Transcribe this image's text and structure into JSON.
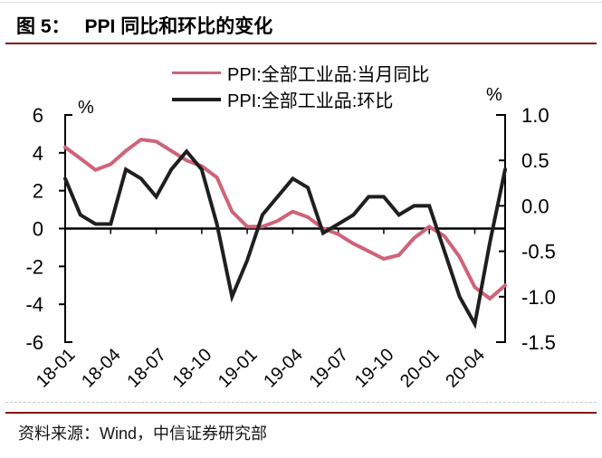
{
  "figure": {
    "title_prefix": "图 5：",
    "title": "PPI 同比和环比的变化",
    "source": "资料来源：Wind，中信证券研究部",
    "accent_color": "#83190e"
  },
  "chart_data": {
    "type": "line",
    "x": [
      "2018-01",
      "2018-02",
      "2018-03",
      "2018-04",
      "2018-05",
      "2018-06",
      "2018-07",
      "2018-08",
      "2018-09",
      "2018-10",
      "2018-11",
      "2018-12",
      "2019-01",
      "2019-02",
      "2019-03",
      "2019-04",
      "2019-05",
      "2019-06",
      "2019-07",
      "2019-08",
      "2019-09",
      "2019-10",
      "2019-11",
      "2019-12",
      "2020-01",
      "2020-02",
      "2020-03",
      "2020-04",
      "2020-05",
      "2020-06"
    ],
    "x_tick_labels": [
      "18-01",
      "18-04",
      "18-07",
      "18-10",
      "19-01",
      "19-04",
      "19-07",
      "19-10",
      "20-01",
      "20-04"
    ],
    "x_tick_every": 3,
    "left_axis": {
      "unit": "%",
      "min": -6,
      "max": 6,
      "tick_values": [
        6,
        4,
        2,
        0,
        -2,
        -4,
        -6
      ],
      "tick_labels": [
        "6",
        "4",
        "2",
        "0",
        "-2",
        "-4",
        "-6"
      ]
    },
    "right_axis": {
      "unit": "%",
      "min": -1.5,
      "max": 1.0,
      "tick_values": [
        1.0,
        0.5,
        0.0,
        -0.5,
        -1.0,
        -1.5
      ],
      "tick_labels": [
        "1.0",
        "0.5",
        "0.0",
        "-0.5",
        "-1.0",
        "-1.5"
      ]
    },
    "legend_position": "top",
    "grid": "off",
    "series": [
      {
        "name": "PPI:全部工业品:当月同比",
        "axis": "left",
        "color": "#cf6378",
        "values": [
          4.3,
          3.7,
          3.1,
          3.4,
          4.1,
          4.7,
          4.6,
          4.1,
          3.6,
          3.3,
          2.7,
          0.9,
          0.1,
          0.1,
          0.4,
          0.9,
          0.6,
          0.0,
          -0.3,
          -0.8,
          -1.2,
          -1.6,
          -1.4,
          -0.5,
          0.1,
          -0.4,
          -1.5,
          -3.1,
          -3.7,
          -3.0
        ]
      },
      {
        "name": "PPI:全部工业品:环比",
        "axis": "right",
        "color": "#1f1f1f",
        "values": [
          0.3,
          -0.1,
          -0.2,
          -0.2,
          0.4,
          0.3,
          0.1,
          0.4,
          0.6,
          0.4,
          -0.2,
          -1.0,
          -0.6,
          -0.1,
          0.1,
          0.3,
          0.2,
          -0.3,
          -0.2,
          -0.1,
          0.1,
          0.1,
          -0.1,
          0.0,
          0.0,
          -0.5,
          -1.0,
          -1.3,
          -0.4,
          0.4
        ]
      }
    ]
  }
}
